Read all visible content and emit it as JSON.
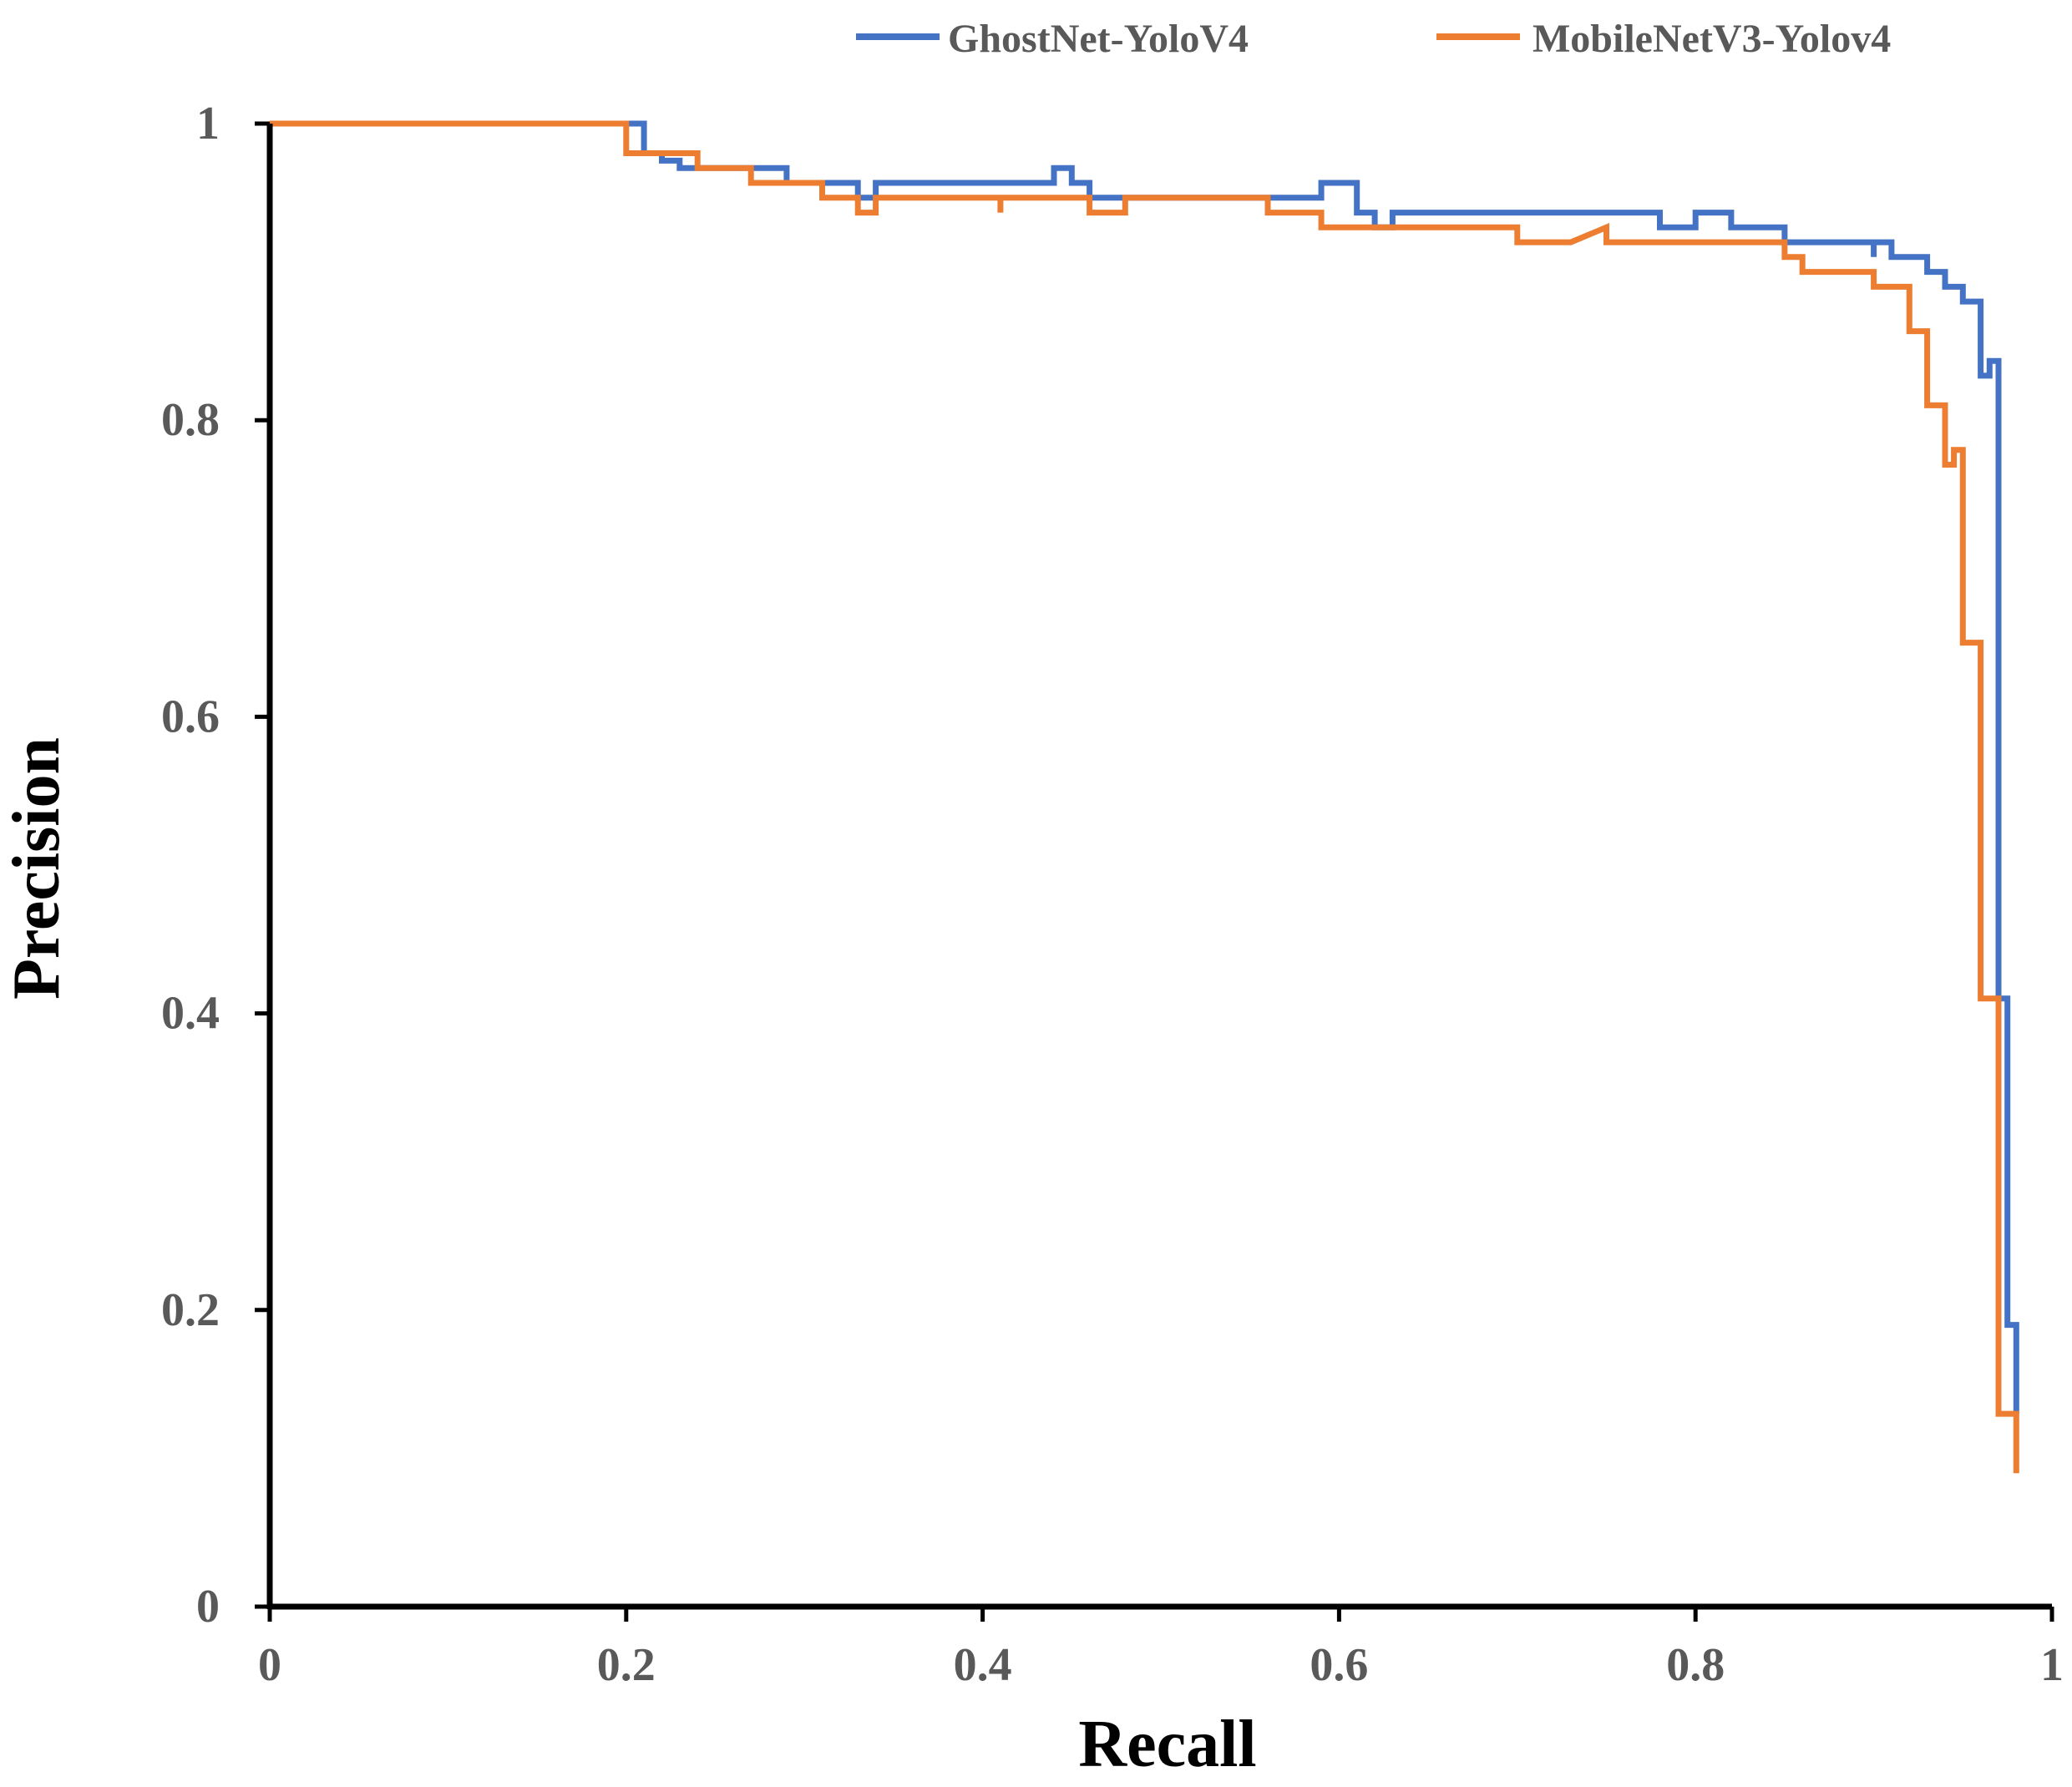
{
  "chart_data": {
    "type": "line",
    "title": "",
    "xlabel": "Recall",
    "ylabel": "Precision",
    "xlim": [
      0,
      1
    ],
    "ylim": [
      0,
      1
    ],
    "x_ticks": [
      "0",
      "0.2",
      "0.4",
      "0.6",
      "0.8",
      "1"
    ],
    "y_ticks": [
      "0",
      "0.2",
      "0.4",
      "0.6",
      "0.8",
      "1"
    ],
    "grid": false,
    "legend_position": "top-right",
    "series": [
      {
        "name": "GhostNet-YoloV4",
        "color": "#4472C4",
        "points": [
          [
            0,
            1
          ],
          [
            0.21,
            1
          ],
          [
            0.21,
            0.98
          ],
          [
            0.22,
            0.98
          ],
          [
            0.22,
            0.975
          ],
          [
            0.23,
            0.975
          ],
          [
            0.23,
            0.97
          ],
          [
            0.27,
            0.97
          ],
          [
            0.27,
            0.97
          ],
          [
            0.29,
            0.97
          ],
          [
            0.29,
            0.96
          ],
          [
            0.33,
            0.96
          ],
          [
            0.33,
            0.95
          ],
          [
            0.34,
            0.95
          ],
          [
            0.34,
            0.96
          ],
          [
            0.44,
            0.96
          ],
          [
            0.44,
            0.97
          ],
          [
            0.45,
            0.97
          ],
          [
            0.45,
            0.96
          ],
          [
            0.46,
            0.96
          ],
          [
            0.46,
            0.95
          ],
          [
            0.59,
            0.95
          ],
          [
            0.59,
            0.96
          ],
          [
            0.61,
            0.96
          ],
          [
            0.61,
            0.94
          ],
          [
            0.62,
            0.94
          ],
          [
            0.62,
            0.93
          ],
          [
            0.63,
            0.93
          ],
          [
            0.63,
            0.94
          ],
          [
            0.78,
            0.94
          ],
          [
            0.78,
            0.93
          ],
          [
            0.8,
            0.93
          ],
          [
            0.8,
            0.94
          ],
          [
            0.82,
            0.94
          ],
          [
            0.82,
            0.93
          ],
          [
            0.85,
            0.93
          ],
          [
            0.85,
            0.92
          ],
          [
            0.9,
            0.92
          ],
          [
            0.9,
            0.91
          ],
          [
            0.9,
            0.92
          ],
          [
            0.91,
            0.92
          ],
          [
            0.91,
            0.91
          ],
          [
            0.93,
            0.91
          ],
          [
            0.93,
            0.9
          ],
          [
            0.94,
            0.9
          ],
          [
            0.94,
            0.89
          ],
          [
            0.95,
            0.89
          ],
          [
            0.95,
            0.88
          ],
          [
            0.96,
            0.88
          ],
          [
            0.96,
            0.83
          ],
          [
            0.965,
            0.83
          ],
          [
            0.965,
            0.84
          ],
          [
            0.97,
            0.84
          ],
          [
            0.97,
            0.41
          ],
          [
            0.975,
            0.41
          ],
          [
            0.975,
            0.19
          ],
          [
            0.98,
            0.19
          ],
          [
            0.98,
            0.13
          ]
        ]
      },
      {
        "name": "MobileNetV3-Yolov4",
        "color": "#ED7D31",
        "points": [
          [
            0,
            1
          ],
          [
            0.2,
            1
          ],
          [
            0.2,
            0.98
          ],
          [
            0.24,
            0.98
          ],
          [
            0.24,
            0.97
          ],
          [
            0.27,
            0.97
          ],
          [
            0.27,
            0.96
          ],
          [
            0.31,
            0.96
          ],
          [
            0.31,
            0.95
          ],
          [
            0.33,
            0.95
          ],
          [
            0.33,
            0.94
          ],
          [
            0.34,
            0.94
          ],
          [
            0.34,
            0.95
          ],
          [
            0.41,
            0.95
          ],
          [
            0.41,
            0.94
          ],
          [
            0.41,
            0.95
          ],
          [
            0.46,
            0.95
          ],
          [
            0.46,
            0.94
          ],
          [
            0.48,
            0.94
          ],
          [
            0.48,
            0.95
          ],
          [
            0.56,
            0.95
          ],
          [
            0.56,
            0.94
          ],
          [
            0.59,
            0.94
          ],
          [
            0.59,
            0.93
          ],
          [
            0.7,
            0.93
          ],
          [
            0.7,
            0.92
          ],
          [
            0.73,
            0.92
          ],
          [
            0.75,
            0.93
          ],
          [
            0.75,
            0.92
          ],
          [
            0.85,
            0.92
          ],
          [
            0.85,
            0.91
          ],
          [
            0.86,
            0.91
          ],
          [
            0.86,
            0.9
          ],
          [
            0.9,
            0.9
          ],
          [
            0.9,
            0.89
          ],
          [
            0.92,
            0.89
          ],
          [
            0.92,
            0.86
          ],
          [
            0.93,
            0.86
          ],
          [
            0.93,
            0.81
          ],
          [
            0.94,
            0.81
          ],
          [
            0.94,
            0.77
          ],
          [
            0.945,
            0.77
          ],
          [
            0.945,
            0.78
          ],
          [
            0.95,
            0.78
          ],
          [
            0.95,
            0.65
          ],
          [
            0.96,
            0.65
          ],
          [
            0.96,
            0.41
          ],
          [
            0.97,
            0.41
          ],
          [
            0.97,
            0.13
          ],
          [
            0.98,
            0.13
          ],
          [
            0.98,
            0.09
          ]
        ]
      }
    ]
  }
}
